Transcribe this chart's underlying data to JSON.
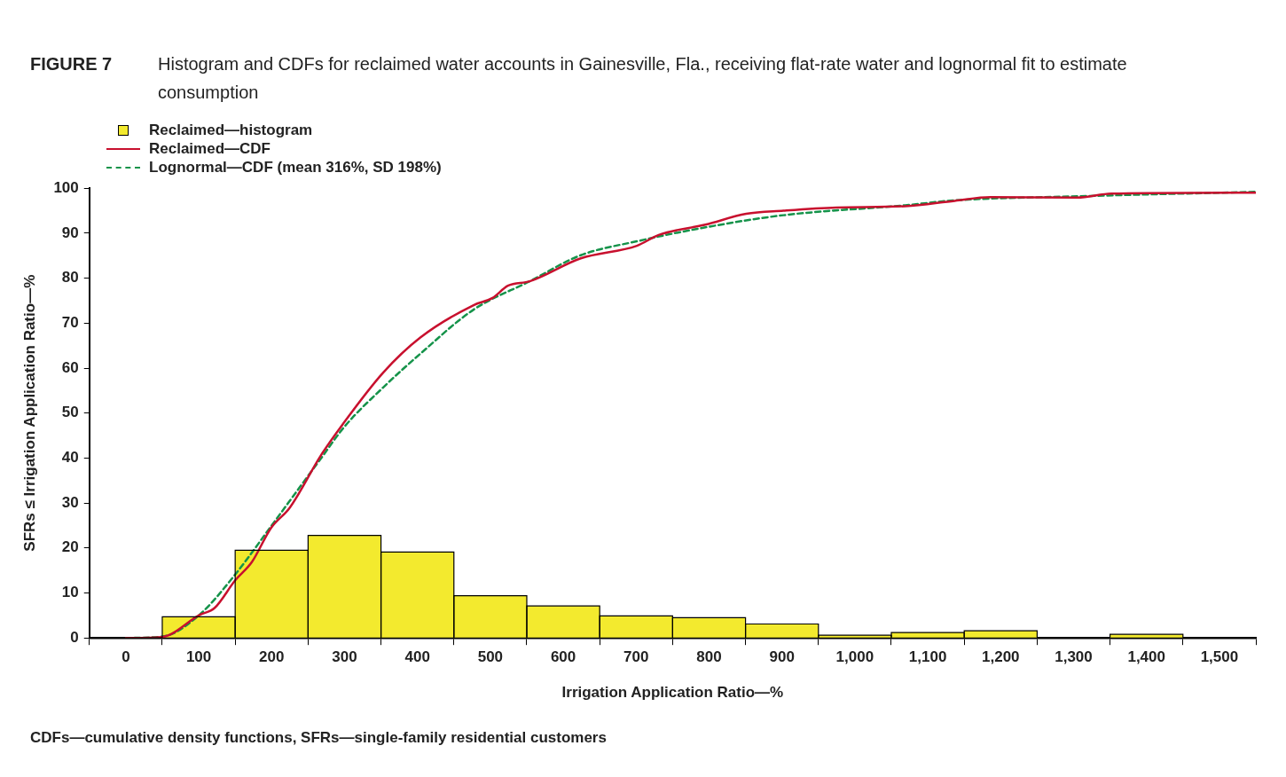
{
  "chart_data": {
    "type": "histogram",
    "title": "FIGURE 7",
    "subtitle": "Histogram and CDFs for reclaimed water accounts in Gainesville, Fla., receiving flat-rate water and lognormal fit to estimate consumption",
    "xlabel": "Irrigation Application Ratio—%",
    "ylabel": "SFRs ≤ Irrigation Application Ratio—%",
    "annotations": [
      "CDFs—cumulative density functions, SFRs—single-family residential customers"
    ],
    "bins": [
      -50,
      50,
      150,
      250,
      350,
      450,
      550,
      650,
      750,
      850,
      950,
      1050,
      1150,
      1250,
      1350,
      1450,
      1550
    ],
    "series": [
      {
        "name": "Reclaimed—histogram",
        "color": "#f3ea2e",
        "values": [
          0,
          4.7,
          19.5,
          22.8,
          19.1,
          9.4,
          7.1,
          4.9,
          4.5,
          3.1,
          0.6,
          1.2,
          1.6,
          0,
          0.8,
          0
        ]
      },
      {
        "type": "line",
        "name": "Reclaimed—CDF",
        "color": "#c8102e",
        "line_style": "solid",
        "x": [
          0,
          49,
          101,
          122,
          150,
          173,
          199,
          225,
          268,
          297,
          353,
          404,
          477,
          503,
          524,
          554,
          624,
          701,
          731,
          795,
          851,
          902,
          975,
          1069,
          1137,
          1186,
          1305,
          1352,
          1550
        ],
        "values": [
          0,
          0.2,
          5.1,
          6.7,
          12.8,
          16.9,
          24.4,
          29,
          40.7,
          47.4,
          59,
          66.8,
          74,
          75.6,
          78.3,
          79.3,
          84.4,
          87.2,
          89.6,
          91.9,
          94.3,
          95,
          95.7,
          96,
          97.2,
          98,
          97.9,
          98.8,
          99
        ]
      },
      {
        "type": "line",
        "name": "Lognormal—CDF (mean 316%, SD 198%)",
        "color": "#15934a",
        "line_style": "dashed",
        "x": [
          0,
          50,
          100,
          150,
          200,
          268,
          300,
          353,
          404,
          477,
          554,
          624,
          701,
          795,
          902,
          1069,
          1137,
          1305,
          1550
        ],
        "values": [
          0,
          0.3,
          5,
          14.1,
          25,
          40,
          47,
          55.7,
          63.2,
          73,
          79.3,
          85.1,
          88.2,
          91.3,
          94,
          96.2,
          97.3,
          98.2,
          99.2
        ]
      }
    ],
    "xlim": [
      -50,
      1550
    ],
    "xticks": [
      {
        "value": -50,
        "label": null
      },
      0,
      {
        "value": 50,
        "label": null
      },
      100,
      {
        "value": 150,
        "label": null
      },
      200,
      {
        "value": 250,
        "label": null
      },
      300,
      {
        "value": 350,
        "label": null
      },
      400,
      {
        "value": 450,
        "label": null
      },
      500,
      {
        "value": 550,
        "label": null
      },
      600,
      {
        "value": 650,
        "label": null
      },
      700,
      {
        "value": 750,
        "label": null
      },
      800,
      {
        "value": 850,
        "label": null
      },
      900,
      {
        "value": 950,
        "label": null
      },
      {
        "value": 1000,
        "label": "1,000"
      },
      {
        "value": 1050,
        "label": null
      },
      {
        "value": 1100,
        "label": "1,100"
      },
      {
        "value": 1150,
        "label": null
      },
      {
        "value": 1200,
        "label": "1,200"
      },
      {
        "value": 1250,
        "label": null
      },
      {
        "value": 1300,
        "label": "1,300"
      },
      {
        "value": 1350,
        "label": null
      },
      {
        "value": 1400,
        "label": "1,400"
      },
      {
        "value": 1450,
        "label": null
      },
      {
        "value": 1500,
        "label": "1,500"
      },
      {
        "value": 1550,
        "label": null
      }
    ],
    "ylim": [
      0,
      100
    ],
    "yticks": [
      0,
      10,
      20,
      30,
      40,
      50,
      60,
      70,
      80,
      90,
      100
    ],
    "grid": false,
    "legend": "top left",
    "marker": "none"
  }
}
